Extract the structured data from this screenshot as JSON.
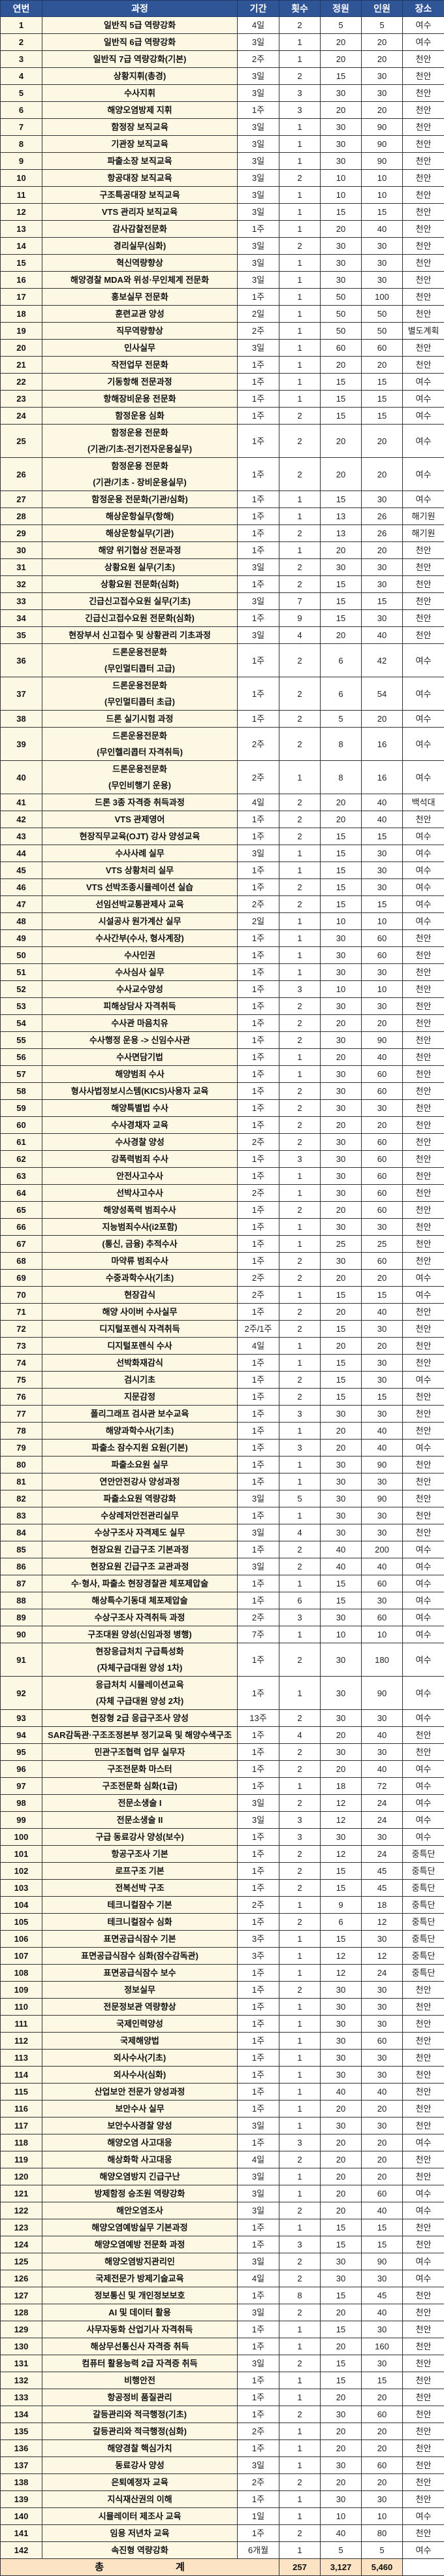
{
  "header": {
    "no": "연번",
    "course": "과정",
    "period": "기간",
    "times": "횟수",
    "capacity": "정원",
    "persons": "인원",
    "place": "장소"
  },
  "colors": {
    "header_bg": "#2f5597",
    "course_bg": "#fdf8e3",
    "total_bg": "#fbe3c3"
  },
  "rows": [
    [
      "1",
      "일반직 5급 역량강화",
      "4일",
      "2",
      "5",
      "5",
      "여수"
    ],
    [
      "2",
      "일반직 6급 역량강화",
      "3일",
      "1",
      "20",
      "20",
      "여수"
    ],
    [
      "3",
      "일반직 7급 역량강화(기본)",
      "2주",
      "1",
      "20",
      "20",
      "천안"
    ],
    [
      "4",
      "상황지휘(총경)",
      "3일",
      "2",
      "15",
      "30",
      "천안"
    ],
    [
      "5",
      "수사지휘",
      "3일",
      "3",
      "30",
      "30",
      "천안"
    ],
    [
      "6",
      "해양오염방제 지휘",
      "1주",
      "3",
      "20",
      "20",
      "천안"
    ],
    [
      "7",
      "함정장 보직교육",
      "3일",
      "1",
      "30",
      "90",
      "천안"
    ],
    [
      "8",
      "기관장 보직교육",
      "3일",
      "1",
      "30",
      "90",
      "천안"
    ],
    [
      "9",
      "파출소장 보직교육",
      "3일",
      "1",
      "30",
      "90",
      "천안"
    ],
    [
      "10",
      "항공대장 보직교육",
      "3일",
      "2",
      "10",
      "10",
      "천안"
    ],
    [
      "11",
      "구조특공대장 보직교육",
      "3일",
      "1",
      "10",
      "10",
      "천안"
    ],
    [
      "12",
      "VTS 관리자 보직교육",
      "3일",
      "1",
      "15",
      "15",
      "천안"
    ],
    [
      "13",
      "감사감찰전문화",
      "1주",
      "1",
      "20",
      "40",
      "천안"
    ],
    [
      "14",
      "경리실무(심화)",
      "3일",
      "2",
      "30",
      "30",
      "천안"
    ],
    [
      "15",
      "혁신역량향상",
      "3일",
      "1",
      "30",
      "30",
      "천안"
    ],
    [
      "16",
      "해양경찰 MDA와 위성·무인체계 전문화",
      "3일",
      "1",
      "30",
      "30",
      "천안"
    ],
    [
      "17",
      "홍보실무 전문화",
      "1주",
      "1",
      "50",
      "100",
      "천안"
    ],
    [
      "18",
      "훈련교관 양성",
      "2일",
      "1",
      "50",
      "50",
      "천안"
    ],
    [
      "19",
      "직무역량향상",
      "2주",
      "1",
      "50",
      "50",
      "별도계획"
    ],
    [
      "20",
      "인사실무",
      "3일",
      "1",
      "60",
      "60",
      "천안"
    ],
    [
      "21",
      "작전업무 전문화",
      "1주",
      "1",
      "20",
      "20",
      "천안"
    ],
    [
      "22",
      "기동항해 전문과정",
      "1주",
      "1",
      "15",
      "15",
      "여수"
    ],
    [
      "23",
      "항해장비운용 전문화",
      "1주",
      "1",
      "15",
      "15",
      "여수"
    ],
    [
      "24",
      "함정운용 심화",
      "1주",
      "2",
      "15",
      "15",
      "여수"
    ],
    [
      "25",
      "함정운용 전문화\n(기관/기초-전기전자운용실무)",
      "1주",
      "2",
      "20",
      "20",
      "여수"
    ],
    [
      "26",
      "함정운용 전문화\n(기관/기초 - 장비운용실무)",
      "1주",
      "2",
      "20",
      "20",
      "여수"
    ],
    [
      "27",
      "함정운용 전문화(기관/심화)",
      "1주",
      "1",
      "15",
      "30",
      "여수"
    ],
    [
      "28",
      "해상운항실무(항해)",
      "1주",
      "1",
      "13",
      "26",
      "해기원"
    ],
    [
      "29",
      "해상운항실무(기관)",
      "1주",
      "2",
      "13",
      "26",
      "해기원"
    ],
    [
      "30",
      "해양 위기협상 전문과정",
      "1주",
      "1",
      "20",
      "20",
      "천안"
    ],
    [
      "31",
      "상황요원 실무(기초)",
      "3일",
      "2",
      "30",
      "30",
      "천안"
    ],
    [
      "32",
      "상황요원 전문화(심화)",
      "1주",
      "2",
      "15",
      "30",
      "천안"
    ],
    [
      "33",
      "긴급신고접수요원 실무(기초)",
      "3일",
      "7",
      "15",
      "15",
      "천안"
    ],
    [
      "34",
      "긴급신고접수요원 전문화(심화)",
      "1주",
      "9",
      "15",
      "30",
      "천안"
    ],
    [
      "35",
      "현장부서 신고접수 및 상황관리 기초과정",
      "3일",
      "4",
      "20",
      "40",
      "천안"
    ],
    [
      "36",
      "드론운용전문화\n(무인멀티콥터 고급)",
      "1주",
      "2",
      "6",
      "42",
      "여수"
    ],
    [
      "37",
      "드론운용전문화\n(무인멀티콥터 초급)",
      "1주",
      "2",
      "6",
      "54",
      "여수"
    ],
    [
      "38",
      "드론 실기시험 과정",
      "1주",
      "2",
      "5",
      "20",
      "여수"
    ],
    [
      "39",
      "드론운용전문화\n(무인헬리콥터 자격취득)",
      "2주",
      "2",
      "8",
      "16",
      "여수"
    ],
    [
      "40",
      "드론운용전문화\n(무인비행기 운용)",
      "2주",
      "1",
      "8",
      "16",
      "여수"
    ],
    [
      "41",
      "드론 3종 자격증 취득과정",
      "4일",
      "2",
      "20",
      "40",
      "백석대"
    ],
    [
      "42",
      "VTS 관제영어",
      "1주",
      "2",
      "20",
      "40",
      "천안"
    ],
    [
      "43",
      "현장직무교육(OJT) 강사 양성교육",
      "1주",
      "2",
      "15",
      "15",
      "여수"
    ],
    [
      "44",
      "수사사례 실무",
      "3일",
      "1",
      "15",
      "30",
      "여수"
    ],
    [
      "45",
      "VTS 상황처리 실무",
      "1주",
      "1",
      "15",
      "30",
      "여수"
    ],
    [
      "46",
      "VTS 선박조종시뮬레이션 실습",
      "1주",
      "2",
      "15",
      "30",
      "여수"
    ],
    [
      "47",
      "선임선박교통관제사 교육",
      "2주",
      "2",
      "15",
      "15",
      "여수"
    ],
    [
      "48",
      "시설공사 원가계산 실무",
      "2일",
      "1",
      "10",
      "10",
      "여수"
    ],
    [
      "49",
      "수사간부(수사, 형사계장)",
      "1주",
      "1",
      "30",
      "60",
      "천안"
    ],
    [
      "50",
      "수사인권",
      "1주",
      "1",
      "30",
      "60",
      "천안"
    ],
    [
      "51",
      "수사심사 실무",
      "1주",
      "1",
      "30",
      "30",
      "천안"
    ],
    [
      "52",
      "수사교수양성",
      "1주",
      "3",
      "10",
      "10",
      "천안"
    ],
    [
      "53",
      "피해상담사 자격취득",
      "1주",
      "2",
      "30",
      "30",
      "천안"
    ],
    [
      "54",
      "수사관 마음치유",
      "1주",
      "2",
      "20",
      "20",
      "천안"
    ],
    [
      "55",
      "수사행정 운용 -> 신임수사관",
      "1주",
      "2",
      "30",
      "90",
      "천안"
    ],
    [
      "56",
      "수사면담기법",
      "1주",
      "1",
      "20",
      "40",
      "천안"
    ],
    [
      "57",
      "해양범죄 수사",
      "1주",
      "1",
      "30",
      "60",
      "천안"
    ],
    [
      "58",
      "형사사법정보시스템(KICS)사용자 교육",
      "1주",
      "2",
      "30",
      "60",
      "천안"
    ],
    [
      "59",
      "해양특별법 수사",
      "1주",
      "2",
      "30",
      "30",
      "천안"
    ],
    [
      "60",
      "수사경채자 교육",
      "1주",
      "2",
      "20",
      "20",
      "천안"
    ],
    [
      "61",
      "수사경찰 양성",
      "2주",
      "2",
      "30",
      "60",
      "천안"
    ],
    [
      "62",
      "강폭력범죄 수사",
      "1주",
      "3",
      "30",
      "60",
      "천안"
    ],
    [
      "63",
      "안전사고수사",
      "1주",
      "1",
      "30",
      "60",
      "천안"
    ],
    [
      "64",
      "선박사고수사",
      "2주",
      "1",
      "30",
      "60",
      "천안"
    ],
    [
      "65",
      "해양성폭력 범죄수사",
      "1주",
      "2",
      "20",
      "60",
      "천안"
    ],
    [
      "66",
      "지능범죄수사(i2포함)",
      "1주",
      "1",
      "30",
      "30",
      "천안"
    ],
    [
      "67",
      "(통신, 금융) 추적수사",
      "1주",
      "1",
      "25",
      "25",
      "천안"
    ],
    [
      "68",
      "마약류 범죄수사",
      "1주",
      "2",
      "30",
      "60",
      "천안"
    ],
    [
      "69",
      "수중과학수사(기초)",
      "2주",
      "2",
      "20",
      "20",
      "여수"
    ],
    [
      "70",
      "현장감식",
      "2주",
      "1",
      "15",
      "15",
      "여수"
    ],
    [
      "71",
      "해양 사이버 수사실무",
      "1주",
      "2",
      "20",
      "40",
      "천안"
    ],
    [
      "72",
      "디지털포렌식 자격취득",
      "2주/1주",
      "2",
      "15",
      "30",
      "천안"
    ],
    [
      "73",
      "디지털포렌식 수사",
      "4일",
      "1",
      "20",
      "20",
      "천안"
    ],
    [
      "74",
      "선박화재감식",
      "1주",
      "1",
      "15",
      "30",
      "천안"
    ],
    [
      "75",
      "검시기초",
      "1주",
      "2",
      "15",
      "30",
      "여수"
    ],
    [
      "76",
      "지문감정",
      "1주",
      "2",
      "15",
      "15",
      "천안"
    ],
    [
      "77",
      "폴리그래프 검사관 보수교육",
      "1주",
      "3",
      "30",
      "30",
      "천안"
    ],
    [
      "78",
      "해양과학수사(기초)",
      "1주",
      "1",
      "20",
      "40",
      "천안"
    ],
    [
      "79",
      "파출소 잠수지원 요원(기본)",
      "1주",
      "3",
      "20",
      "40",
      "여수"
    ],
    [
      "80",
      "파출소요원 실무",
      "1주",
      "1",
      "30",
      "90",
      "천안"
    ],
    [
      "81",
      "연안안전강사 양성과정",
      "1주",
      "1",
      "30",
      "30",
      "천안"
    ],
    [
      "82",
      "파출소요원 역량강화",
      "3일",
      "5",
      "30",
      "90",
      "천안"
    ],
    [
      "83",
      "수상레저안전관리실무",
      "1주",
      "1",
      "30",
      "30",
      "천안"
    ],
    [
      "84",
      "수상구조사 자격제도 실무",
      "3일",
      "4",
      "30",
      "30",
      "천안"
    ],
    [
      "85",
      "현장요원 긴급구조 기본과정",
      "1주",
      "2",
      "40",
      "200",
      "여수"
    ],
    [
      "86",
      "현장요원 긴급구조 교관과정",
      "3일",
      "2",
      "40",
      "40",
      "여수"
    ],
    [
      "87",
      "수·형사, 파출소 현장경찰관 체포제압술",
      "1주",
      "1",
      "15",
      "60",
      "여수"
    ],
    [
      "88",
      "해상특수기동대 체포제압술",
      "1주",
      "6",
      "15",
      "30",
      "여수"
    ],
    [
      "89",
      "수상구조사 자격취득 과정",
      "2주",
      "3",
      "30",
      "60",
      "여수"
    ],
    [
      "90",
      "구조대원 양성(신임과정 병행)",
      "7주",
      "1",
      "10",
      "10",
      "여수"
    ],
    [
      "91",
      "현장응급처치 구급특성화\n(자체구급대원 양성 1차)",
      "1주",
      "2",
      "30",
      "180",
      "여수"
    ],
    [
      "92",
      "응급처치 시뮬레이션교육\n(자체 구급대원 양성 2차)",
      "1주",
      "1",
      "30",
      "90",
      "여수"
    ],
    [
      "93",
      "현장형 2급 응급구조사 양성",
      "13주",
      "2",
      "30",
      "30",
      "여수"
    ],
    [
      "94",
      "SAR감독관·구조조정본부 정기교육 및 해양수색구조",
      "1주",
      "4",
      "20",
      "40",
      "천안"
    ],
    [
      "95",
      "민관구조협력 업무 실무자",
      "1주",
      "2",
      "30",
      "30",
      "천안"
    ],
    [
      "96",
      "구조전문화 마스터",
      "1주",
      "2",
      "20",
      "40",
      "여수"
    ],
    [
      "97",
      "구조전문화 심화(1급)",
      "1주",
      "1",
      "18",
      "72",
      "여수"
    ],
    [
      "98",
      "전문소생술 I",
      "3일",
      "2",
      "12",
      "24",
      "여수"
    ],
    [
      "99",
      "전문소생술 II",
      "3일",
      "3",
      "12",
      "24",
      "여수"
    ],
    [
      "100",
      "구급 동료강사 양성(보수)",
      "1주",
      "3",
      "30",
      "30",
      "여수"
    ],
    [
      "101",
      "항공구조사 기본",
      "1주",
      "2",
      "12",
      "24",
      "중특단"
    ],
    [
      "102",
      "로프구조 기본",
      "1주",
      "2",
      "15",
      "45",
      "중특단"
    ],
    [
      "103",
      "전복선박 구조",
      "1주",
      "2",
      "15",
      "45",
      "중특단"
    ],
    [
      "104",
      "테크니컬잠수 기본",
      "2주",
      "1",
      "9",
      "18",
      "중특단"
    ],
    [
      "105",
      "테크니컬잠수 심화",
      "1주",
      "2",
      "6",
      "12",
      "중특단"
    ],
    [
      "106",
      "표면공급식잠수 기본",
      "3주",
      "1",
      "15",
      "30",
      "중특단"
    ],
    [
      "107",
      "표면공급식잠수 심화(잠수감독관)",
      "3주",
      "1",
      "12",
      "12",
      "중특단"
    ],
    [
      "108",
      "표면공급식잠수 보수",
      "1주",
      "1",
      "12",
      "24",
      "중특단"
    ],
    [
      "109",
      "정보실무",
      "1주",
      "2",
      "30",
      "30",
      "천안"
    ],
    [
      "110",
      "전문정보관 역량향상",
      "1주",
      "1",
      "30",
      "30",
      "천안"
    ],
    [
      "111",
      "국제인력양성",
      "1주",
      "1",
      "30",
      "30",
      "천안"
    ],
    [
      "112",
      "국제해양법",
      "1주",
      "1",
      "30",
      "60",
      "천안"
    ],
    [
      "113",
      "외사수사(기초)",
      "1주",
      "1",
      "30",
      "30",
      "천안"
    ],
    [
      "114",
      "외사수사(심화)",
      "1주",
      "1",
      "30",
      "30",
      "천안"
    ],
    [
      "115",
      "산업보안 전문가 양성과정",
      "1주",
      "1",
      "40",
      "40",
      "천안"
    ],
    [
      "116",
      "보안수사 실무",
      "1주",
      "1",
      "20",
      "20",
      "천안"
    ],
    [
      "117",
      "보안수사경찰 양성",
      "3일",
      "1",
      "30",
      "30",
      "천안"
    ],
    [
      "118",
      "해양오염 사고대응",
      "1주",
      "3",
      "20",
      "20",
      "여수"
    ],
    [
      "119",
      "해상화학 사고대응",
      "4일",
      "2",
      "20",
      "20",
      "천안"
    ],
    [
      "120",
      "해양오염방지 긴급구난",
      "3일",
      "1",
      "20",
      "20",
      "천안"
    ],
    [
      "121",
      "방제함정 승조원 역량강화",
      "3일",
      "1",
      "20",
      "60",
      "여수"
    ],
    [
      "122",
      "해안오염조사",
      "3일",
      "2",
      "20",
      "40",
      "여수"
    ],
    [
      "123",
      "해양오염예방실무 기본과정",
      "1주",
      "1",
      "15",
      "15",
      "천안"
    ],
    [
      "124",
      "해양오염예방 전문화 과정",
      "1주",
      "3",
      "15",
      "15",
      "천안"
    ],
    [
      "125",
      "해양오염방지관리인",
      "3일",
      "2",
      "30",
      "90",
      "여수"
    ],
    [
      "126",
      "국제전문가 방제기술교육",
      "4일",
      "2",
      "30",
      "30",
      "여수"
    ],
    [
      "127",
      "정보통신 및 개인정보보호",
      "1주",
      "8",
      "15",
      "45",
      "천안"
    ],
    [
      "128",
      "AI 및 데이터 활용",
      "3일",
      "2",
      "20",
      "40",
      "천안"
    ],
    [
      "129",
      "사무자동화 산업기사 자격취득",
      "1주",
      "1",
      "15",
      "30",
      "천안"
    ],
    [
      "130",
      "해상무선통신사 자격증 취득",
      "1주",
      "1",
      "20",
      "160",
      "천안"
    ],
    [
      "131",
      "컴퓨터 활용능력 2급 자격증 취득",
      "3일",
      "2",
      "15",
      "30",
      "천안"
    ],
    [
      "132",
      "비행안전",
      "1주",
      "1",
      "15",
      "15",
      "천안"
    ],
    [
      "133",
      "항공정비 품질관리",
      "1주",
      "1",
      "20",
      "20",
      "천안"
    ],
    [
      "134",
      "갈등관리와 적극행정(기초)",
      "1주",
      "2",
      "30",
      "60",
      "천안"
    ],
    [
      "135",
      "갈등관리와 적극행정(심화)",
      "2주",
      "1",
      "20",
      "20",
      "천안"
    ],
    [
      "136",
      "해양경찰 핵심가치",
      "1주",
      "1",
      "20",
      "20",
      "천안"
    ],
    [
      "137",
      "동료강사 양성",
      "3일",
      "1",
      "30",
      "60",
      "천안"
    ],
    [
      "138",
      "은퇴예정자 교육",
      "2주",
      "2",
      "20",
      "20",
      "천안"
    ],
    [
      "139",
      "지식재산권의 이해",
      "1주",
      "1",
      "30",
      "30",
      "천안"
    ],
    [
      "140",
      "시뮬레이터 제조사 교육",
      "1일",
      "1",
      "10",
      "10",
      "여수"
    ],
    [
      "141",
      "임용 저년차 교육",
      "1주",
      "2",
      "40",
      "80",
      "천안"
    ],
    [
      "142",
      "속진형 역량강화",
      "6개월",
      "1",
      "5",
      "5",
      "여수"
    ]
  ],
  "total": {
    "label_1": "총",
    "label_2": "계",
    "times": "257",
    "capacity": "3,127",
    "persons": "5,460"
  }
}
